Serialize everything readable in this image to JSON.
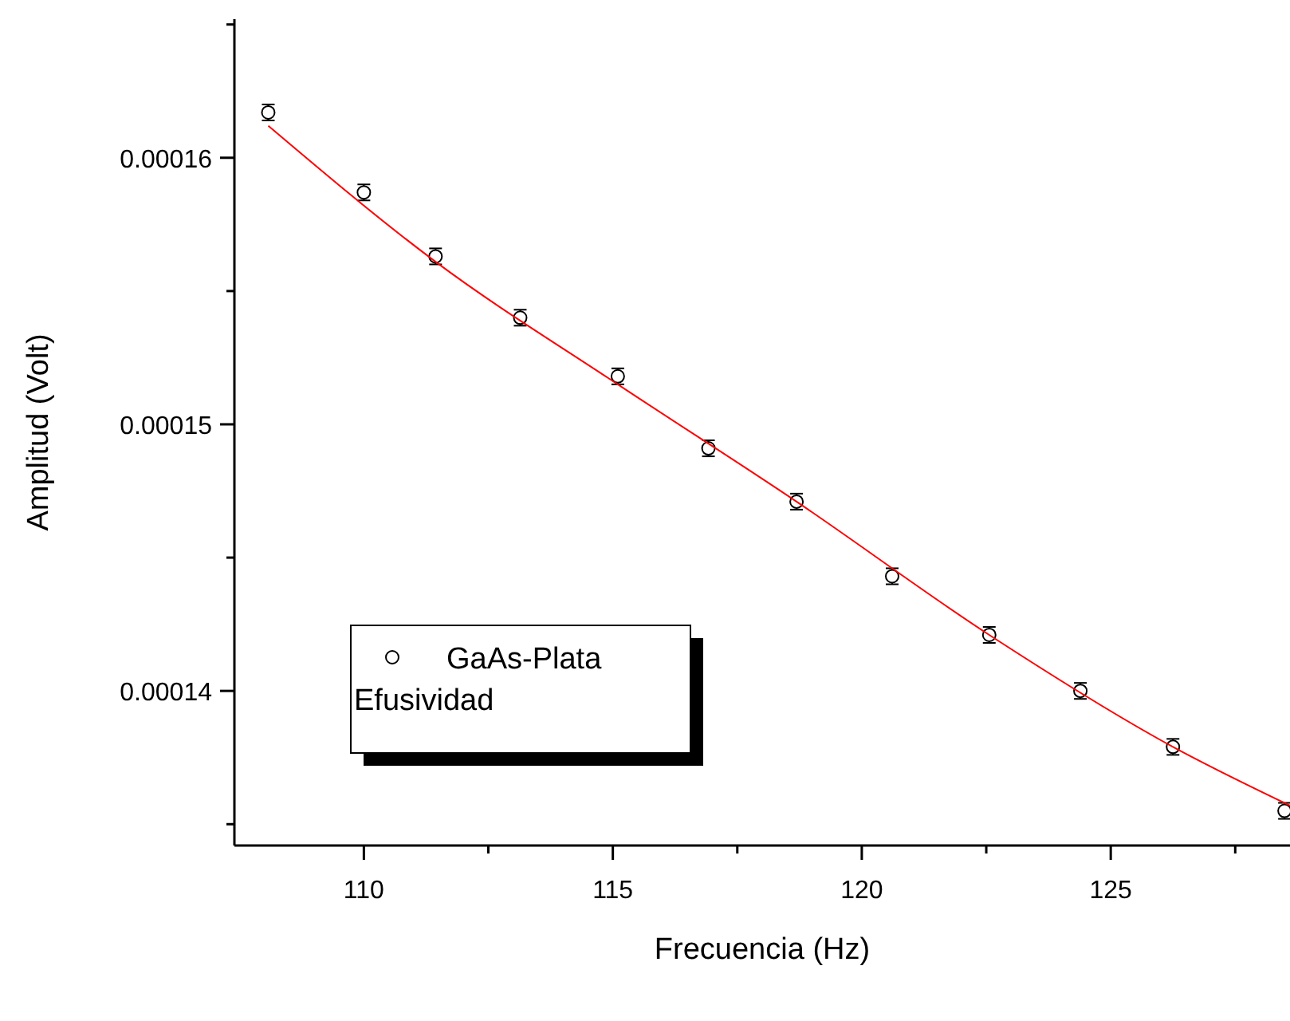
{
  "chart_data": {
    "type": "scatter",
    "xlabel": "Frecuencia (Hz)",
    "ylabel": "Amplitud (Volt)",
    "xlim": [
      107.4,
      128.6
    ],
    "ylim": [
      0.0001342,
      0.0001652
    ],
    "xticks": [
      110,
      {
        "value": 112.5,
        "label": null
      },
      115,
      {
        "value": 117.5,
        "label": null
      },
      120,
      {
        "value": 122.5,
        "label": null
      },
      125,
      {
        "value": 127.5,
        "label": null
      }
    ],
    "yticks": [
      {
        "value": 0.000135,
        "label": null
      },
      0.00014,
      {
        "value": 0.000145,
        "label": null
      },
      0.00015,
      {
        "value": 0.000155,
        "label": null
      },
      0.00016,
      {
        "value": 0.000165,
        "label": null
      }
    ],
    "grid": false,
    "legend": "bottom left",
    "annotations": [
      "Efusividad"
    ],
    "series": [
      {
        "name": "GaAs-Plata",
        "type": "scatter",
        "color": "#000000",
        "marker": "circle",
        "x": [
          108.08,
          110.0,
          111.44,
          113.14,
          115.1,
          116.92,
          118.69,
          120.61,
          122.56,
          124.39,
          126.25,
          128.49
        ],
        "values": [
          0.0001617,
          0.0001587,
          0.0001563,
          0.000154,
          0.0001518,
          0.0001491,
          0.0001471,
          0.0001443,
          0.0001421,
          0.00014,
          0.0001379,
          0.0001355
        ],
        "errors": [
          3e-07,
          3e-07,
          3e-07,
          3e-07,
          3e-07,
          3e-07,
          3e-07,
          3e-07,
          3e-07,
          3e-07,
          3e-07,
          3e-07
        ]
      },
      {
        "type": "line",
        "color": "#ff0000",
        "line_style": "solid",
        "x": [
          108.08,
          111.44,
          115.1,
          118.69,
          122.56,
          126.25,
          128.6
        ],
        "values": [
          0.0001612,
          0.0001561,
          0.0001515,
          0.0001471,
          0.0001421,
          0.0001379,
          0.0001357
        ]
      }
    ]
  }
}
